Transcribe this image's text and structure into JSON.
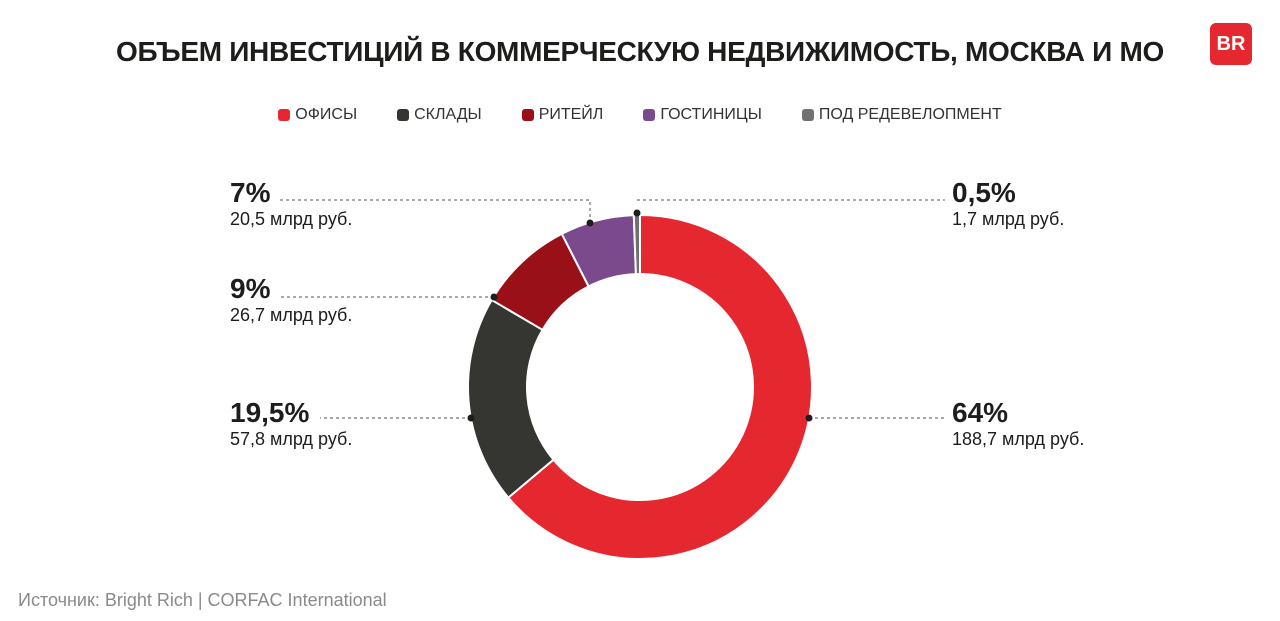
{
  "title": "ОБЪЕМ ИНВЕСТИЦИЙ В КОММЕРЧЕСКУЮ НЕДВИЖИМОСТЬ, МОСКВА И МО",
  "logo": "BR",
  "source": "Источник: Bright Rich | CORFAC International",
  "chart_data": {
    "type": "pie",
    "donut": true,
    "title": "ОБЪЕМ ИНВЕСТИЦИЙ В КОММЕРЧЕСКУЮ НЕДВИЖИМОСТЬ, МОСКВА И МО",
    "legend_position": "top",
    "categories": [
      "ОФИСЫ",
      "СКЛАДЫ",
      "РИТЕЙЛ",
      "ГОСТИНИЦЫ",
      "ПОД РЕДЕВЕЛОПМЕНТ"
    ],
    "values": [
      188.7,
      57.8,
      26.7,
      20.5,
      1.7
    ],
    "percent_labels": [
      "64%",
      "19,5%",
      "9%",
      "7%",
      "0,5%"
    ],
    "value_labels": [
      "188,7 млрд руб.",
      "57,8 млрд руб.",
      "26,7 млрд руб.",
      "20,5 млрд руб.",
      "1,7 млрд руб."
    ],
    "colors": [
      "#e5282f",
      "#353532",
      "#9a1018",
      "#7a4a8c",
      "#707070"
    ]
  }
}
